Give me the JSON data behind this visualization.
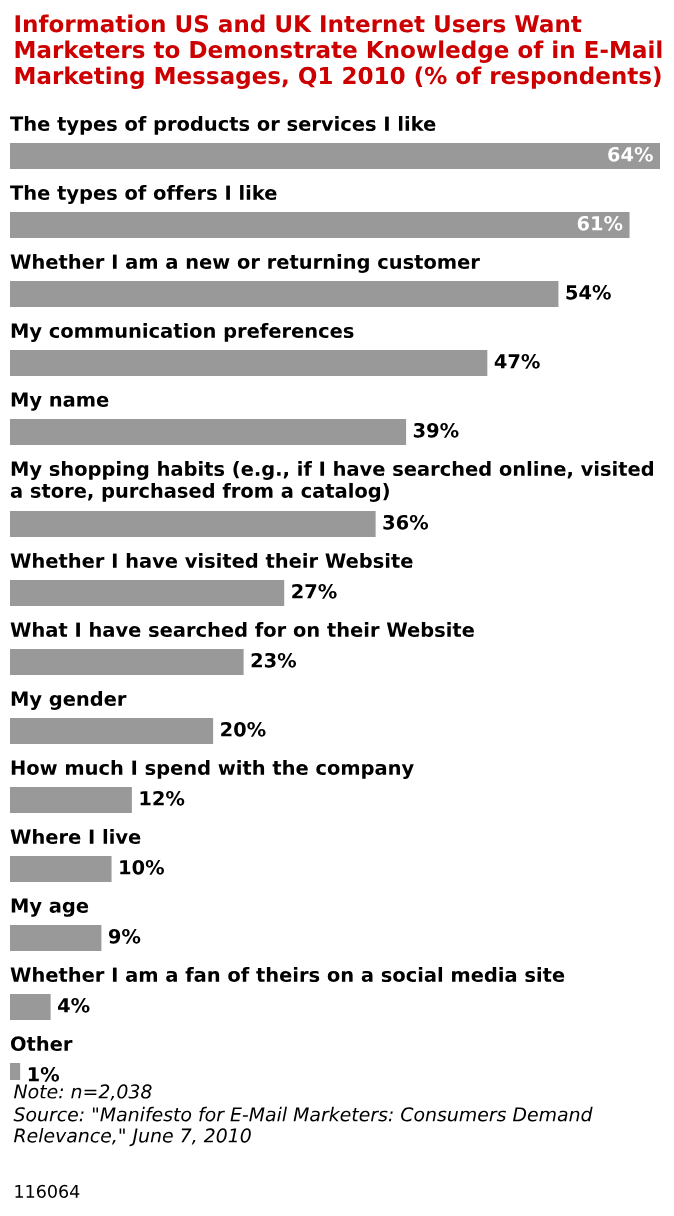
{
  "chart_data": {
    "type": "bar",
    "orientation": "horizontal",
    "title": "Information US and UK Internet Users Want Marketers to Demonstrate Knowledge of in E-Mail Marketing Messages, Q1 2010 (% of respondents)",
    "categories": [
      "The types of products or services I like",
      "The types of offers I like",
      "Whether I am a new or returning customer",
      "My communication preferences",
      "My name",
      "My shopping habits (e.g., if I have searched online, visited a store, purchased from a catalog)",
      "Whether I have visited their Website",
      "What I have searched for on their Website",
      "My gender",
      "How much I spend with the company",
      "Where I live",
      "My age",
      "Whether I am a fan of theirs on a social media site",
      "Other"
    ],
    "values": [
      64,
      61,
      54,
      47,
      39,
      36,
      27,
      23,
      20,
      12,
      10,
      9,
      4,
      1
    ],
    "value_labels": [
      "64%",
      "61%",
      "54%",
      "47%",
      "39%",
      "36%",
      "27%",
      "23%",
      "20%",
      "12%",
      "10%",
      "9%",
      "4%",
      "1%"
    ],
    "color": "#999999",
    "annotations": [
      "Note: n=2,038",
      "Source: \"Manifesto for E-Mail Marketers: Consumers Demand Relevance,\" June 7, 2010",
      "116064"
    ]
  }
}
